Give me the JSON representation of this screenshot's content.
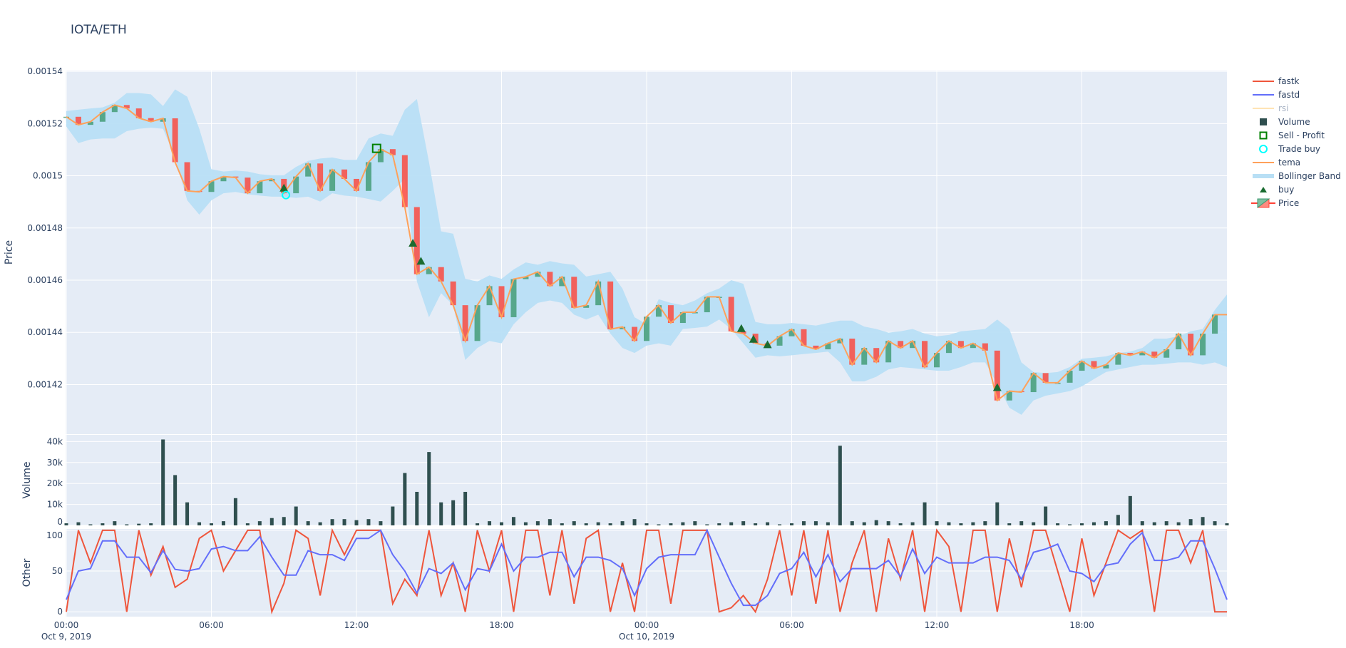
{
  "title": "IOTA/ETH",
  "colors": {
    "plot_bg": "#e5ecf6",
    "grid": "#ffffff",
    "increasing": "#3d9970",
    "decreasing": "#ff4136",
    "tema": "#ffa15a",
    "band": "#b8dff5",
    "volume": "#2f4f4f",
    "fastk": "#ef553b",
    "fastd": "#636efa",
    "rsi": "#ffe4b5",
    "buy": "#1a6b30",
    "trade_buy": "#00ffff",
    "sell_profit": "#008000"
  },
  "legend": [
    {
      "label": "fastk",
      "icon": "line",
      "color": "#ef553b"
    },
    {
      "label": "fastd",
      "icon": "line",
      "color": "#636efa"
    },
    {
      "label": "rsi",
      "icon": "line",
      "color": "#ffe4b5",
      "hidden": true
    },
    {
      "label": "Volume",
      "icon": "square-filled",
      "color": "#2f4f4f"
    },
    {
      "label": "Sell - Profit",
      "icon": "square-open",
      "color": "#008000"
    },
    {
      "label": "Trade buy",
      "icon": "circle-open",
      "color": "#00ffff"
    },
    {
      "label": "tema",
      "icon": "line",
      "color": "#ffa15a"
    },
    {
      "label": "Bollinger Band",
      "icon": "band",
      "color": "#b8dff5"
    },
    {
      "label": "buy",
      "icon": "triangle-up",
      "color": "#1a6b30"
    },
    {
      "label": "Price",
      "icon": "candlestick",
      "color": "#3d9970"
    }
  ],
  "chart_data": [
    {
      "panel": "price",
      "type": "candlestick",
      "ylabel": "Price",
      "ylim": [
        0.001401,
        0.0015403
      ],
      "xlim": [
        "2019-10-09 00:00",
        "2019-10-11 00:00"
      ],
      "grid": true,
      "legend_position": "right",
      "yticks": [
        {
          "value": 0.00142,
          "label": "0.00142"
        },
        {
          "value": 0.00144,
          "label": "0.00144"
        },
        {
          "value": 0.00146,
          "label": "0.00146"
        },
        {
          "value": 0.00148,
          "label": "0.00148"
        },
        {
          "value": 0.0015,
          "label": "0.0015"
        },
        {
          "value": 0.00152,
          "label": "0.00152"
        },
        {
          "value": 0.00154,
          "label": "0.00154"
        }
      ],
      "time": [
        "2019-10-09 00:00",
        "2019-10-09 00:30",
        "2019-10-09 01:00",
        "2019-10-09 01:30",
        "2019-10-09 02:00",
        "2019-10-09 02:30",
        "2019-10-09 03:00",
        "2019-10-09 03:30",
        "2019-10-09 04:00",
        "2019-10-09 04:30",
        "2019-10-09 05:00",
        "2019-10-09 05:30",
        "2019-10-09 06:00",
        "2019-10-09 06:30",
        "2019-10-09 07:00",
        "2019-10-09 07:30",
        "2019-10-09 08:00",
        "2019-10-09 08:30",
        "2019-10-09 09:00",
        "2019-10-09 09:30",
        "2019-10-09 10:00",
        "2019-10-09 10:30",
        "2019-10-09 11:00",
        "2019-10-09 11:30",
        "2019-10-09 12:00",
        "2019-10-09 12:30",
        "2019-10-09 13:00",
        "2019-10-09 13:30",
        "2019-10-09 14:00",
        "2019-10-09 14:30",
        "2019-10-09 15:00",
        "2019-10-09 15:30",
        "2019-10-09 16:00",
        "2019-10-09 16:30",
        "2019-10-09 17:00",
        "2019-10-09 17:30",
        "2019-10-09 18:00",
        "2019-10-09 18:30",
        "2019-10-09 19:00",
        "2019-10-09 19:30",
        "2019-10-09 20:00",
        "2019-10-09 20:30",
        "2019-10-09 21:00",
        "2019-10-09 21:30",
        "2019-10-09 22:00",
        "2019-10-09 22:30",
        "2019-10-09 23:00",
        "2019-10-09 23:30",
        "2019-10-10 00:00",
        "2019-10-10 00:30",
        "2019-10-10 01:00",
        "2019-10-10 01:30",
        "2019-10-10 02:00",
        "2019-10-10 02:30",
        "2019-10-10 03:00",
        "2019-10-10 03:30",
        "2019-10-10 04:00",
        "2019-10-10 04:30",
        "2019-10-10 05:00",
        "2019-10-10 05:30",
        "2019-10-10 06:00",
        "2019-10-10 06:30",
        "2019-10-10 07:00",
        "2019-10-10 07:30",
        "2019-10-10 08:00",
        "2019-10-10 08:30",
        "2019-10-10 09:00",
        "2019-10-10 09:30",
        "2019-10-10 10:00",
        "2019-10-10 10:30",
        "2019-10-10 11:00",
        "2019-10-10 11:30",
        "2019-10-10 12:00",
        "2019-10-10 12:30",
        "2019-10-10 13:00",
        "2019-10-10 13:30",
        "2019-10-10 14:00",
        "2019-10-10 14:30",
        "2019-10-10 15:00",
        "2019-10-10 15:30",
        "2019-10-10 16:00",
        "2019-10-10 16:30",
        "2019-10-10 17:00",
        "2019-10-10 17:30",
        "2019-10-10 18:00",
        "2019-10-10 18:30",
        "2019-10-10 19:00",
        "2019-10-10 19:30",
        "2019-10-10 20:00",
        "2019-10-10 20:30",
        "2019-10-10 21:00",
        "2019-10-10 21:30",
        "2019-10-10 22:00",
        "2019-10-10 22:30",
        "2019-10-10 23:00",
        "2019-10-10 23:30",
        "2019-10-11 00:00"
      ],
      "close": [
        0.0015226,
        0.0015195,
        0.0015207,
        0.0015244,
        0.0015271,
        0.0015258,
        0.0015221,
        0.0015207,
        0.001522,
        0.0015052,
        0.0014942,
        0.0014938,
        0.0014979,
        0.0014997,
        0.0014993,
        0.0014933,
        0.0014979,
        0.0014988,
        0.0014933,
        0.0014997,
        0.0015047,
        0.0014942,
        0.0015024,
        0.0014988,
        0.0014942,
        0.0015052,
        0.0015102,
        0.0015079,
        0.001488,
        0.0014623,
        0.001465,
        0.0014595,
        0.0014504,
        0.0014367,
        0.0014504,
        0.0014577,
        0.0014458,
        0.0014604,
        0.0014613,
        0.0014632,
        0.0014577,
        0.0014613,
        0.0014494,
        0.0014504,
        0.0014595,
        0.0014412,
        0.0014421,
        0.0014367,
        0.001446,
        0.0014504,
        0.0014436,
        0.0014477,
        0.0014477,
        0.0014536,
        0.0014536,
        0.0014404,
        0.0014395,
        0.0014358,
        0.0014349,
        0.0014385,
        0.0014412,
        0.0014349,
        0.0014335,
        0.0014358,
        0.0014376,
        0.0014276,
        0.001434,
        0.0014285,
        0.0014367,
        0.001434,
        0.0014367,
        0.0014266,
        0.0014321,
        0.0014367,
        0.001434,
        0.0014358,
        0.001433,
        0.0014139,
        0.0014175,
        0.0014171,
        0.0014244,
        0.0014207,
        0.0014207,
        0.0014253,
        0.001429,
        0.0014262,
        0.0014276,
        0.0014321,
        0.0014312,
        0.0014326,
        0.0014303,
        0.0014335,
        0.0014395,
        0.0014312,
        0.0014395,
        0.0014468,
        0.0014468
      ],
      "tema": [
        0.0015226,
        0.0015195,
        0.0015207,
        0.0015244,
        0.0015271,
        0.0015258,
        0.0015221,
        0.0015207,
        0.001522,
        0.0015052,
        0.0014942,
        0.0014938,
        0.0014979,
        0.0014997,
        0.0014993,
        0.0014933,
        0.0014979,
        0.0014988,
        0.0014933,
        0.0014997,
        0.0015047,
        0.0014942,
        0.0015024,
        0.0014988,
        0.0014942,
        0.0015052,
        0.0015102,
        0.0015079,
        0.001488,
        0.0014623,
        0.001465,
        0.0014595,
        0.0014504,
        0.0014367,
        0.0014504,
        0.0014577,
        0.0014458,
        0.0014604,
        0.0014613,
        0.0014632,
        0.0014577,
        0.0014613,
        0.0014494,
        0.0014504,
        0.0014595,
        0.0014412,
        0.0014421,
        0.0014367,
        0.001446,
        0.0014504,
        0.0014436,
        0.0014477,
        0.0014477,
        0.0014536,
        0.0014536,
        0.0014404,
        0.0014395,
        0.0014358,
        0.0014349,
        0.0014385,
        0.0014412,
        0.0014349,
        0.0014335,
        0.0014358,
        0.0014376,
        0.0014276,
        0.001434,
        0.0014285,
        0.0014367,
        0.001434,
        0.0014367,
        0.0014266,
        0.0014321,
        0.0014367,
        0.001434,
        0.0014358,
        0.001433,
        0.0014139,
        0.0014175,
        0.0014171,
        0.0014244,
        0.0014207,
        0.0014207,
        0.0014253,
        0.001429,
        0.0014262,
        0.0014276,
        0.0014321,
        0.0014312,
        0.0014326,
        0.0014303,
        0.0014335,
        0.0014395,
        0.0014312,
        0.0014395,
        0.0014468,
        0.0014468
      ],
      "bb_upper": [
        0.0015248,
        0.0015253,
        0.0015258,
        0.0015262,
        0.001528,
        0.0015317,
        0.0015317,
        0.0015312,
        0.0015267,
        0.0015331,
        0.0015303,
        0.001518,
        0.0015025,
        0.0015016,
        0.001502,
        0.0015016,
        0.0015006,
        0.0015002,
        0.0015002,
        0.0015034,
        0.0015057,
        0.0015066,
        0.001507,
        0.0015061,
        0.0015061,
        0.0015143,
        0.0015162,
        0.0015153,
        0.0015253,
        0.0015294,
        0.0015052,
        0.0014787,
        0.0014778,
        0.0014605,
        0.0014595,
        0.0014618,
        0.0014605,
        0.0014641,
        0.0014668,
        0.0014659,
        0.0014673,
        0.0014664,
        0.0014659,
        0.0014614,
        0.0014623,
        0.0014632,
        0.0014568,
        0.0014458,
        0.0014431,
        0.0014527,
        0.0014513,
        0.0014504,
        0.0014522,
        0.001455,
        0.0014568,
        0.00146,
        0.0014586,
        0.001444,
        0.0014431,
        0.0014431,
        0.0014436,
        0.0014431,
        0.0014426,
        0.0014436,
        0.0014445,
        0.0014445,
        0.0014422,
        0.0014413,
        0.0014399,
        0.0014404,
        0.0014413,
        0.0014395,
        0.0014385,
        0.001439,
        0.0014404,
        0.0014408,
        0.0014413,
        0.0014449,
        0.0014413,
        0.0014285,
        0.0014248,
        0.0014244,
        0.0014248,
        0.0014267,
        0.0014299,
        0.0014303,
        0.0014308,
        0.0014321,
        0.0014326,
        0.001434,
        0.0014376,
        0.0014376,
        0.0014385,
        0.0014404,
        0.0014413,
        0.0014486,
        0.0014545
      ],
      "bb_lower": [
        0.0015189,
        0.0015125,
        0.0015139,
        0.0015143,
        0.0015143,
        0.0015171,
        0.001518,
        0.0015184,
        0.001518,
        0.001507,
        0.0014906,
        0.0014851,
        0.0014906,
        0.0014933,
        0.0014938,
        0.0014929,
        0.0014924,
        0.001492,
        0.001492,
        0.0014915,
        0.001492,
        0.0014901,
        0.0014933,
        0.0014924,
        0.001492,
        0.0014911,
        0.0014901,
        0.0014942,
        0.0014988,
        0.0014595,
        0.0014458,
        0.001455,
        0.0014504,
        0.0014294,
        0.001434,
        0.0014367,
        0.0014358,
        0.0014431,
        0.0014477,
        0.0014513,
        0.0014522,
        0.0014513,
        0.0014468,
        0.0014449,
        0.0014468,
        0.0014395,
        0.001434,
        0.0014321,
        0.0014349,
        0.0014358,
        0.0014349,
        0.0014413,
        0.0014417,
        0.0014422,
        0.0014449,
        0.0014413,
        0.0014358,
        0.0014303,
        0.0014312,
        0.0014308,
        0.0014312,
        0.0014317,
        0.0014321,
        0.0014326,
        0.0014285,
        0.0014212,
        0.0014212,
        0.001423,
        0.0014258,
        0.0014267,
        0.0014263,
        0.0014258,
        0.0014253,
        0.0014253,
        0.0014267,
        0.0014285,
        0.0014285,
        0.0014203,
        0.0014111,
        0.0014084,
        0.0014139,
        0.0014157,
        0.0014166,
        0.0014175,
        0.0014193,
        0.0014221,
        0.0014248,
        0.0014258,
        0.0014267,
        0.0014276,
        0.0014276,
        0.001428,
        0.0014285,
        0.0014285,
        0.0014276,
        0.0014285,
        0.0014267
      ],
      "buy": [
        {
          "time": "2019-10-09 09:00",
          "price": 0.0014953
        },
        {
          "time": "2019-10-09 14:20",
          "price": 0.0014742
        },
        {
          "time": "2019-10-09 14:40",
          "price": 0.0014673
        },
        {
          "time": "2019-10-10 03:55",
          "price": 0.0014415
        },
        {
          "time": "2019-10-10 04:25",
          "price": 0.0014374
        },
        {
          "time": "2019-10-10 05:00",
          "price": 0.0014353
        },
        {
          "time": "2019-10-10 14:30",
          "price": 0.0014189
        }
      ],
      "trade_buy": [
        {
          "time": "2019-10-09 09:05",
          "price": 0.0014926
        }
      ],
      "sell_profit": [
        {
          "time": "2019-10-09 12:50",
          "price": 0.0015105
        }
      ]
    },
    {
      "panel": "volume",
      "type": "bar",
      "ylabel": "Volume",
      "ylim": [
        0,
        43200
      ],
      "yticks": [
        {
          "value": 0,
          "label": "0"
        },
        {
          "value": 10000,
          "label": "10k"
        },
        {
          "value": 20000,
          "label": "20k"
        },
        {
          "value": 30000,
          "label": "30k"
        },
        {
          "value": 40000,
          "label": "40k"
        }
      ],
      "values": [
        1000,
        1500,
        500,
        1000,
        2000,
        500,
        800,
        1000,
        41000,
        24000,
        11000,
        1500,
        1000,
        2000,
        13000,
        1000,
        2000,
        3500,
        4000,
        9000,
        2000,
        1500,
        3000,
        3000,
        2500,
        3000,
        2000,
        9000,
        25000,
        16000,
        35000,
        11000,
        12000,
        16000,
        1000,
        2000,
        1500,
        4000,
        1500,
        2000,
        3000,
        1000,
        2000,
        1000,
        1500,
        1000,
        2000,
        3000,
        1000,
        500,
        1000,
        1500,
        2000,
        500,
        1000,
        1500,
        2000,
        1000,
        1500,
        500,
        1000,
        2000,
        2000,
        1500,
        38000,
        2000,
        1500,
        2500,
        2000,
        1000,
        1500,
        11000,
        2000,
        1500,
        1000,
        1500,
        2000,
        11000,
        1000,
        2000,
        1500,
        9000,
        1000,
        500,
        1000,
        1500,
        2000,
        5000,
        14000,
        2000,
        1500,
        2000,
        1500,
        3000,
        4000,
        2000,
        1000
      ]
    },
    {
      "panel": "other",
      "type": "line",
      "ylabel": "Other",
      "ylim": [
        -5.9,
        101.6
      ],
      "yticks": [
        {
          "value": 0,
          "label": "0"
        },
        {
          "value": 50,
          "label": "50"
        },
        {
          "value": 100,
          "label": "100"
        }
      ],
      "xticks": [
        {
          "time": "2019-10-09 00:00",
          "label": "00:00",
          "sublabel": "Oct 9, 2019"
        },
        {
          "time": "2019-10-09 06:00",
          "label": "06:00"
        },
        {
          "time": "2019-10-09 12:00",
          "label": "12:00"
        },
        {
          "time": "2019-10-09 18:00",
          "label": "18:00"
        },
        {
          "time": "2019-10-10 00:00",
          "label": "00:00",
          "sublabel": "Oct 10, 2019"
        },
        {
          "time": "2019-10-10 06:00",
          "label": "06:00"
        },
        {
          "time": "2019-10-10 12:00",
          "label": "12:00"
        },
        {
          "time": "2019-10-10 18:00",
          "label": "18:00"
        }
      ],
      "series": [
        {
          "name": "fastk",
          "values": [
            0,
            100,
            60,
            100,
            100,
            0,
            100,
            45,
            80,
            30,
            40,
            90,
            100,
            50,
            75,
            100,
            100,
            0,
            35,
            100,
            90,
            20,
            100,
            70,
            100,
            100,
            100,
            10,
            40,
            20,
            100,
            20,
            60,
            0,
            100,
            50,
            100,
            0,
            100,
            100,
            20,
            100,
            10,
            90,
            100,
            0,
            60,
            0,
            100,
            100,
            10,
            100,
            100,
            100,
            0,
            5,
            20,
            0,
            40,
            100,
            20,
            100,
            10,
            100,
            0,
            60,
            100,
            0,
            90,
            40,
            100,
            0,
            100,
            80,
            0,
            100,
            100,
            0,
            90,
            30,
            100,
            100,
            50,
            0,
            90,
            20,
            60,
            100,
            90,
            100,
            0,
            100,
            100,
            60,
            100,
            0,
            0
          ]
        },
        {
          "name": "fastd",
          "values": [
            15,
            50,
            53,
            87,
            87,
            67,
            67,
            48,
            75,
            52,
            50,
            53,
            77,
            80,
            75,
            75,
            92,
            67,
            45,
            45,
            75,
            70,
            70,
            63,
            90,
            90,
            100,
            70,
            50,
            23,
            53,
            47,
            60,
            27,
            53,
            50,
            83,
            50,
            67,
            67,
            73,
            73,
            43,
            67,
            67,
            63,
            53,
            20,
            53,
            67,
            70,
            70,
            70,
            100,
            67,
            35,
            8,
            8,
            20,
            47,
            53,
            73,
            43,
            70,
            37,
            53,
            53,
            53,
            63,
            43,
            77,
            47,
            67,
            60,
            60,
            60,
            67,
            67,
            63,
            40,
            73,
            77,
            83,
            50,
            47,
            37,
            57,
            60,
            83,
            97,
            63,
            63,
            67,
            87,
            87,
            53,
            15
          ]
        }
      ]
    }
  ]
}
